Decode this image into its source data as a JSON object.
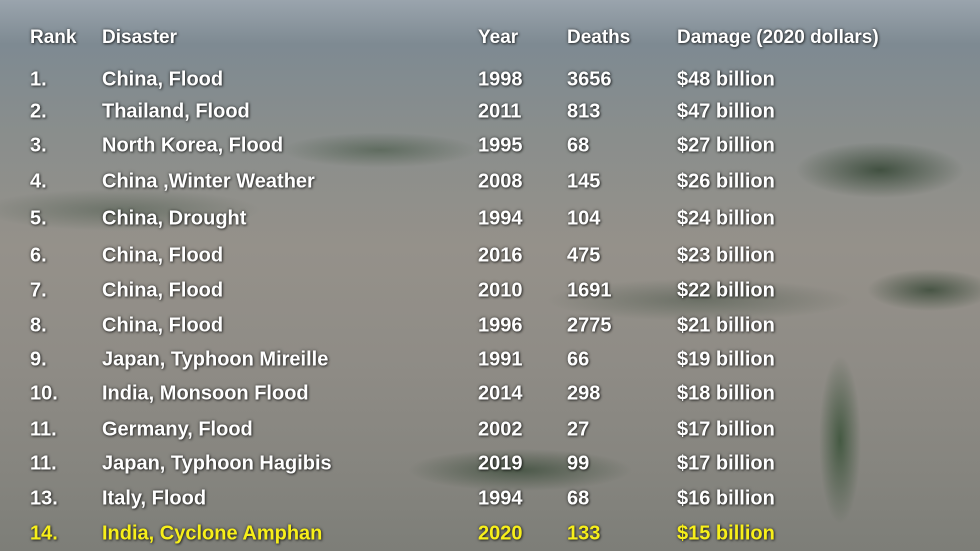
{
  "table": {
    "headers": [
      "Rank",
      "Disaster",
      "Year",
      "Deaths",
      "Damage (2020 dollars)"
    ],
    "rows": [
      [
        "1.",
        "China, Flood",
        1998,
        3656,
        "$48 billion"
      ],
      [
        "2.",
        "Thailand, Flood",
        2011,
        813,
        "$47 billion"
      ],
      [
        "3.",
        "North Korea, Flood",
        1995,
        68,
        "$27 billion"
      ],
      [
        "4.",
        "China ,Winter Weather",
        2008,
        145,
        "$26 billion"
      ],
      [
        "5.",
        "China, Drought",
        1994,
        104,
        "$24 billion"
      ],
      [
        "6.",
        "China, Flood",
        2016,
        475,
        "$23 billion"
      ],
      [
        "7.",
        "China, Flood",
        2010,
        1691,
        "$22 billion"
      ],
      [
        "8.",
        "China, Flood",
        1996,
        2775,
        "$21 billion"
      ],
      [
        "9.",
        "Japan, Typhoon Mireille",
        1991,
        66,
        "$19 billion"
      ],
      [
        "10.",
        "India, Monsoon Flood",
        2014,
        298,
        "$18 billion"
      ],
      [
        "11.",
        "Germany, Flood",
        2002,
        27,
        "$17 billion"
      ],
      [
        "11.",
        "Japan, Typhoon Hagibis",
        2019,
        99,
        "$17 billion"
      ],
      [
        "13.",
        "Italy, Flood",
        1994,
        68,
        "$16 billion"
      ],
      [
        "14.",
        "India, Cyclone Amphan",
        2020,
        133,
        "$15 billion"
      ]
    ]
  }
}
